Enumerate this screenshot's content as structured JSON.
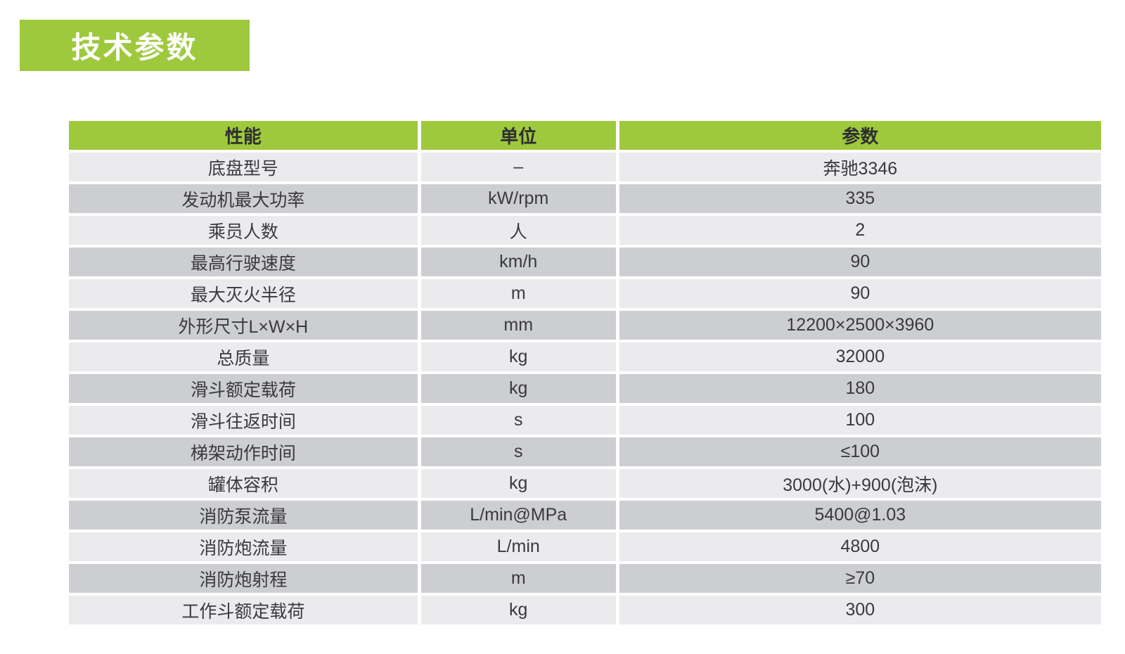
{
  "page": {
    "background_color": "#ffffff",
    "accent_green": "#9ec93d",
    "row_light_color": "#ebebed",
    "row_dark_color": "#cdced1",
    "text_color": "#3a3a3c"
  },
  "badge": {
    "label": "技术参数"
  },
  "table": {
    "header": [
      "性能",
      "单位",
      "参数"
    ],
    "rows": [
      {
        "name": "底盘型号",
        "unit": "–",
        "value": "奔驰3346"
      },
      {
        "name": "发动机最大功率",
        "unit": "kW/rpm",
        "value": "335"
      },
      {
        "name": "乘员人数",
        "unit": "人",
        "value": "2"
      },
      {
        "name": "最高行驶速度",
        "unit": "km/h",
        "value": "90"
      },
      {
        "name": "最大灭火半径",
        "unit": "m",
        "value": "90"
      },
      {
        "name": "外形尺寸L×W×H",
        "unit": "mm",
        "value": "12200×2500×3960"
      },
      {
        "name": "总质量",
        "unit": "kg",
        "value": "32000"
      },
      {
        "name": "滑斗额定载荷",
        "unit": "kg",
        "value": "180"
      },
      {
        "name": "滑斗往返时间",
        "unit": "s",
        "value": "100"
      },
      {
        "name": "梯架动作时间",
        "unit": "s",
        "value": "≤100"
      },
      {
        "name": "罐体容积",
        "unit": "kg",
        "value": "3000(水)+900(泡沫)"
      },
      {
        "name": "消防泵流量",
        "unit": "L/min@MPa",
        "value": "5400@1.03"
      },
      {
        "name": "消防炮流量",
        "unit": "L/min",
        "value": "4800"
      },
      {
        "name": "消防炮射程",
        "unit": "m",
        "value": "≥70"
      },
      {
        "name": "工作斗额定载荷",
        "unit": "kg",
        "value": "300"
      }
    ]
  }
}
